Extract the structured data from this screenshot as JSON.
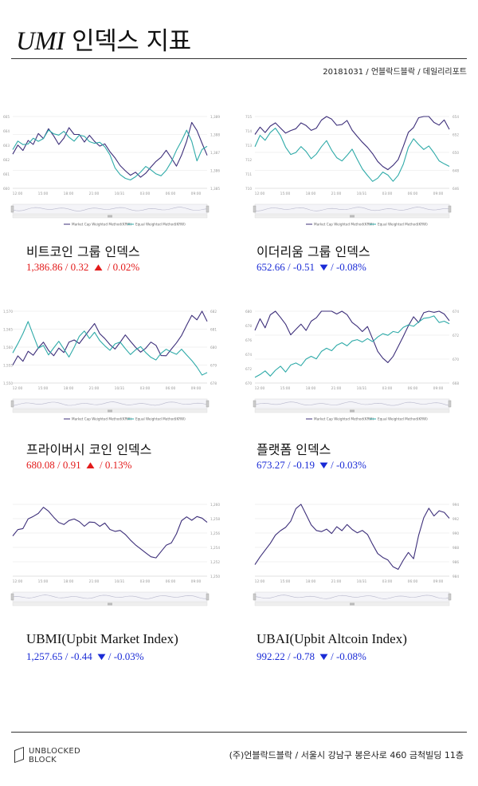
{
  "header": {
    "title_latin": "UMI",
    "title_korean": "인덱스 지표",
    "date": "20181031",
    "publisher": "언블락드블락",
    "report": "데일리리포트"
  },
  "colors": {
    "market_cap": "#3d2f7a",
    "equal_weight": "#2eaaa8",
    "up": "#e31b1b",
    "down": "#1a2bd6"
  },
  "time_ticks": [
    "12:00",
    "15:00",
    "18:00",
    "21:00",
    "10/31",
    "03:00",
    "06:00",
    "09:00"
  ],
  "legend": {
    "market_cap": "Market Cap Weighted Method(KRW)",
    "equal_weight": "Equal Weighted Method(KRW)"
  },
  "indices": [
    {
      "id": "bitcoin",
      "label": "비트코인 그룹 인덱스",
      "value": "1,386.86",
      "change": "0.32",
      "arrow": "▲",
      "pct": "0.02%",
      "direction": "up",
      "chart_data": {
        "type": "line",
        "x_ticks": [
          "12:00",
          "15:00",
          "18:00",
          "21:00",
          "10/31",
          "03:00",
          "06:00",
          "09:00"
        ],
        "left_ticks": [
          "665",
          "664",
          "663",
          "662",
          "661",
          "660"
        ],
        "right_ticks": [
          "1,389",
          "1,388",
          "1,387",
          "1,386",
          "1,385"
        ],
        "series": [
          {
            "name": "Market Cap Weighted Method(KRW)",
            "axis": "right",
            "values": [
              1386.9,
              1387.3,
              1387.1,
              1387.6,
              1387.4,
              1388.0,
              1387.7,
              1388.3,
              1388.0,
              1387.5,
              1387.8,
              1388.4,
              1388.1,
              1388.0,
              1387.6,
              1387.9,
              1387.5,
              1387.3,
              1387.4,
              1387.0,
              1386.6,
              1386.2,
              1385.9,
              1385.8,
              1386.0,
              1385.7,
              1385.9,
              1386.3,
              1386.6,
              1386.8,
              1387.0,
              1386.6,
              1386.2,
              1386.8,
              1387.6,
              1388.6,
              1388.1,
              1387.4,
              1386.9
            ]
          },
          {
            "name": "Equal Weighted Method(KRW)",
            "axis": "left",
            "values": [
              662.6,
              663.2,
              662.9,
              663.0,
              663.4,
              663.2,
              663.6,
              664.1,
              663.9,
              663.8,
              664.0,
              663.7,
              663.4,
              663.6,
              663.5,
              663.2,
              663.0,
              663.1,
              662.8,
              662.2,
              661.4,
              661.0,
              660.8,
              660.7,
              660.9,
              661.2,
              661.6,
              661.4,
              661.0,
              660.8,
              661.2,
              661.8,
              662.6,
              663.2,
              664.0,
              663.2,
              662.0,
              662.8,
              663.0
            ]
          }
        ]
      }
    },
    {
      "id": "ethereum",
      "label": "이더리움 그룹 인덱스",
      "value": "652.66",
      "change": "-0.51",
      "arrow": "▼",
      "pct": "-0.08%",
      "direction": "down",
      "chart_data": {
        "type": "line",
        "x_ticks": [
          "12:00",
          "15:00",
          "18:00",
          "21:00",
          "10/31",
          "03:00",
          "06:00",
          "09:00"
        ],
        "left_ticks": [
          "715",
          "714",
          "713",
          "712",
          "711",
          "710"
        ],
        "right_ticks": [
          "654",
          "652",
          "650",
          "648",
          "646"
        ],
        "series": [
          {
            "name": "Market Cap Weighted Method(KRW)",
            "axis": "right",
            "values": [
              652.0,
              652.6,
              652.2,
              652.8,
              653.2,
              652.6,
              652.0,
              652.4,
              652.8,
              653.4,
              653.0,
              652.5,
              652.9,
              653.6,
              654.2,
              653.6,
              652.8,
              653.0,
              653.4,
              652.4,
              651.6,
              651.0,
              650.4,
              650.0,
              649.2,
              648.6,
              648.2,
              648.8,
              649.4,
              650.8,
              652.0,
              652.6,
              653.8,
              654.6,
              654.0,
              653.2,
              652.8,
              653.4,
              652.7
            ]
          },
          {
            "name": "Equal Weighted Method(KRW)",
            "axis": "left",
            "values": [
              712.8,
              713.6,
              713.2,
              713.8,
              714.1,
              713.6,
              713.0,
              712.4,
              712.6,
              713.0,
              712.6,
              712.2,
              712.5,
              712.8,
              713.2,
              712.6,
              712.0,
              711.8,
              712.2,
              712.6,
              712.0,
              711.4,
              711.0,
              710.6,
              710.8,
              711.2,
              711.0,
              710.6,
              710.9,
              711.6,
              712.8,
              713.4,
              713.0,
              712.6,
              712.9,
              712.4,
              712.0,
              711.8,
              711.6
            ]
          }
        ]
      }
    },
    {
      "id": "privacy",
      "label": "프라이버시 코인 인덱스",
      "value": "680.08",
      "change": "0.91",
      "arrow": "▲",
      "pct": "0.13%",
      "direction": "up",
      "chart_data": {
        "type": "line",
        "x_ticks": [
          "12:00",
          "15:00",
          "18:00",
          "21:00",
          "10/31",
          "03:00",
          "06:00",
          "09:00"
        ],
        "left_ticks": [
          "1,570",
          "1,565",
          "1,560",
          "1,555",
          "1,550"
        ],
        "right_ticks": [
          "682",
          "681",
          "680",
          "679",
          "678"
        ],
        "series": [
          {
            "name": "Market Cap Weighted Method(KRW)",
            "axis": "right",
            "values": [
              679.0,
              679.4,
              679.2,
              679.7,
              679.5,
              679.9,
              680.2,
              679.8,
              679.6,
              680.0,
              679.7,
              680.3,
              680.5,
              680.2,
              680.6,
              680.9,
              681.2,
              680.7,
              680.4,
              680.1,
              679.8,
              680.2,
              680.6,
              680.4,
              680.1,
              679.8,
              680.0,
              680.4,
              680.2,
              679.6,
              679.4,
              679.8,
              680.2,
              680.6,
              681.2,
              681.7,
              681.4,
              681.9,
              681.5
            ]
          },
          {
            "name": "Equal Weighted Method(KRW)",
            "axis": "left",
            "values": [
              1558.0,
              1560.6,
              1563.2,
              1566.8,
              1563.0,
              1559.4,
              1561.0,
              1558.0,
              1560.2,
              1562.0,
              1559.6,
              1557.8,
              1560.4,
              1562.6,
              1564.0,
              1562.2,
              1563.6,
              1561.4,
              1560.0,
              1558.6,
              1560.8,
              1561.6,
              1560.0,
              1558.4,
              1559.6,
              1560.4,
              1558.8,
              1557.6,
              1556.4,
              1558.0,
              1559.2,
              1558.4,
              1557.8,
              1559.0,
              1557.6,
              1556.0,
              1554.8,
              1552.6,
              1553.2
            ]
          }
        ]
      }
    },
    {
      "id": "platform",
      "label": "플랫폼 인덱스",
      "value": "673.27",
      "change": "-0.19",
      "arrow": "▼",
      "pct": "-0.03%",
      "direction": "down",
      "chart_data": {
        "type": "line",
        "x_ticks": [
          "12:00",
          "15:00",
          "18:00",
          "21:00",
          "10/31",
          "03:00",
          "06:00",
          "09:00"
        ],
        "left_ticks": [
          "680",
          "678",
          "676",
          "674",
          "672",
          "670"
        ],
        "right_ticks": [
          "674",
          "672",
          "670",
          "668"
        ],
        "series": [
          {
            "name": "Market Cap Weighted Method(KRW)",
            "axis": "right",
            "values": [
              672.4,
              673.2,
              672.6,
              673.6,
              674.0,
              673.4,
              672.8,
              672.0,
              672.6,
              673.0,
              672.4,
              673.2,
              673.6,
              674.2,
              674.6,
              674.0,
              673.6,
              674.0,
              673.6,
              673.0,
              672.6,
              672.2,
              672.6,
              671.8,
              670.8,
              670.2,
              669.8,
              670.4,
              671.2,
              672.0,
              672.6,
              673.4,
              673.0,
              673.8,
              674.3,
              673.8,
              674.0,
              673.6,
              673.3
            ]
          },
          {
            "name": "Equal Weighted Method(KRW)",
            "axis": "left",
            "values": [
              670.6,
              671.0,
              671.4,
              670.8,
              671.6,
              672.2,
              671.8,
              672.6,
              673.0,
              672.6,
              673.4,
              674.0,
              673.6,
              674.2,
              674.6,
              674.4,
              675.0,
              675.4,
              675.0,
              675.6,
              676.0,
              675.8,
              676.4,
              676.0,
              676.6,
              677.0,
              676.8,
              677.4,
              677.0,
              677.6,
              678.0,
              677.8,
              678.4,
              678.8,
              679.0,
              679.2,
              678.6,
              678.8,
              678.4
            ]
          }
        ]
      }
    },
    {
      "id": "ubmi",
      "label": "UBMI(Upbit Market Index)",
      "value": "1,257.65",
      "change": "-0.44",
      "arrow": "▼",
      "pct": "-0.03%",
      "direction": "down",
      "chart_data": {
        "type": "line",
        "x_ticks": [
          "12:00",
          "15:00",
          "18:00",
          "21:00",
          "10/31",
          "03:00",
          "06:00",
          "09:00"
        ],
        "right_ticks": [
          "1,260",
          "1,258",
          "1,256",
          "1,254",
          "1,252",
          "1,250"
        ],
        "series": [
          {
            "name": "UBMI",
            "axis": "right",
            "values": [
              1255.6,
              1256.2,
              1256.6,
              1257.8,
              1258.2,
              1258.6,
              1259.4,
              1259.0,
              1258.4,
              1257.6,
              1257.2,
              1257.8,
              1258.2,
              1257.6,
              1257.0,
              1257.4,
              1257.2,
              1256.8,
              1257.2,
              1256.4,
              1256.0,
              1256.2,
              1255.6,
              1255.2,
              1254.6,
              1254.0,
              1253.4,
              1253.0,
              1252.8,
              1253.6,
              1254.0,
              1254.4,
              1255.8,
              1257.6,
              1258.2,
              1257.6,
              1258.0,
              1257.8,
              1257.65
            ]
          }
        ]
      }
    },
    {
      "id": "ubai",
      "label": "UBAI(Upbit Altcoin Index)",
      "value": "992.22",
      "change": "-0.78",
      "arrow": "▼",
      "pct": "-0.08%",
      "direction": "down",
      "chart_data": {
        "type": "line",
        "x_ticks": [
          "12:00",
          "15:00",
          "18:00",
          "21:00",
          "10/31",
          "03:00",
          "06:00",
          "09:00"
        ],
        "right_ticks": [
          "994",
          "992",
          "990",
          "988",
          "986",
          "984"
        ],
        "series": [
          {
            "name": "UBAI",
            "axis": "right",
            "values": [
              985.6,
              986.4,
              987.6,
              988.4,
              989.6,
              990.2,
              990.6,
              991.6,
              993.6,
              994.4,
              992.6,
              991.2,
              990.6,
              990.2,
              990.6,
              989.8,
              990.6,
              990.2,
              991.0,
              990.4,
              989.8,
              990.2,
              989.6,
              988.6,
              987.4,
              986.8,
              986.4,
              985.6,
              985.2,
              986.4,
              987.0,
              986.2,
              989.6,
              992.0,
              993.4,
              992.2,
              992.8,
              992.6,
              992.22
            ]
          }
        ]
      }
    }
  ],
  "footer": {
    "logo_line1": "UNBLOCKED",
    "logo_line2": "BLOCK",
    "address": "(주)언블락드블락 / 서울시 강남구 봉은사로 460 금척빌딩 11층"
  }
}
